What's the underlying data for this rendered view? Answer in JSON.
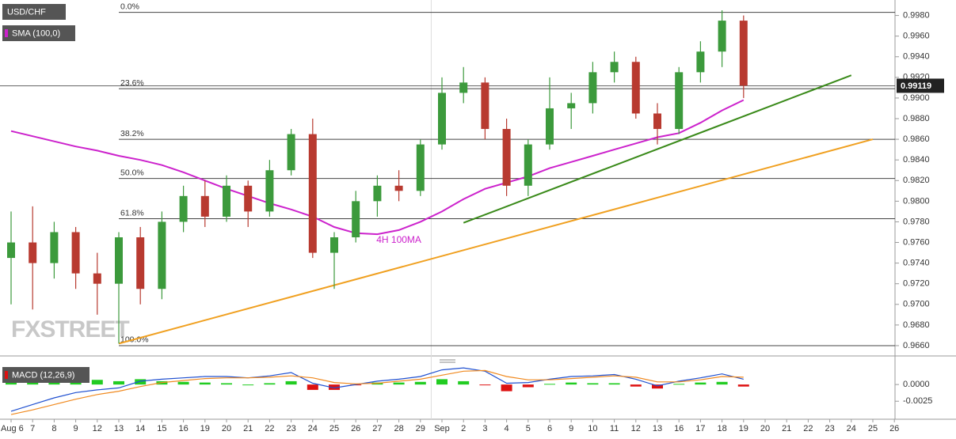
{
  "chart_data": [
    {
      "type": "candlestick",
      "symbol": "USD/CHF",
      "categories": [
        "Aug 6",
        "7",
        "8",
        "9",
        "12",
        "13",
        "14",
        "15",
        "16",
        "19",
        "20",
        "21",
        "22",
        "23",
        "24",
        "25",
        "26",
        "27",
        "28",
        "29",
        "Sep",
        "2",
        "3",
        "4",
        "5",
        "6",
        "9",
        "10",
        "11",
        "12",
        "13",
        "16",
        "17",
        "18",
        "19",
        "20",
        "21",
        "22",
        "23",
        "24",
        "25",
        "26"
      ],
      "open": [
        0.9745,
        0.976,
        0.974,
        0.977,
        0.973,
        0.972,
        0.9765,
        0.9715,
        0.978,
        0.9805,
        0.9785,
        0.9815,
        0.979,
        0.983,
        0.9865,
        0.975,
        0.9765,
        0.98,
        0.9815,
        0.981,
        0.9855,
        0.9905,
        0.9915,
        0.987,
        0.9815,
        0.9855,
        0.989,
        0.9895,
        0.9925,
        0.9935,
        0.9885,
        0.987,
        0.9925,
        0.9945,
        0.9975,
        null,
        null,
        null,
        null,
        null,
        null,
        null
      ],
      "high": [
        0.979,
        0.9795,
        0.978,
        0.9775,
        0.975,
        0.977,
        0.9775,
        0.979,
        0.9815,
        0.982,
        0.9825,
        0.982,
        0.984,
        0.987,
        0.988,
        0.977,
        0.981,
        0.9825,
        0.983,
        0.986,
        0.992,
        0.993,
        0.992,
        0.988,
        0.986,
        0.992,
        0.9905,
        0.9935,
        0.9945,
        0.994,
        0.9895,
        0.993,
        0.9955,
        0.9985,
        0.998,
        null,
        null,
        null,
        null,
        null,
        null,
        null
      ],
      "low": [
        0.97,
        0.9695,
        0.9725,
        0.9715,
        0.969,
        0.9662,
        0.97,
        0.9705,
        0.977,
        0.9775,
        0.978,
        0.9775,
        0.9785,
        0.9825,
        0.9745,
        0.9715,
        0.976,
        0.9785,
        0.98,
        0.9805,
        0.985,
        0.9895,
        0.986,
        0.9805,
        0.9805,
        0.985,
        0.987,
        0.9885,
        0.9915,
        0.988,
        0.9855,
        0.9865,
        0.9915,
        0.993,
        0.99,
        null,
        null,
        null,
        null,
        null,
        null,
        null
      ],
      "close": [
        0.976,
        0.974,
        0.977,
        0.973,
        0.972,
        0.9765,
        0.9715,
        0.978,
        0.9805,
        0.9785,
        0.9815,
        0.979,
        0.983,
        0.9865,
        0.975,
        0.9765,
        0.98,
        0.9815,
        0.981,
        0.9855,
        0.9905,
        0.9915,
        0.987,
        0.9815,
        0.9855,
        0.989,
        0.9895,
        0.9925,
        0.9935,
        0.9885,
        0.987,
        0.9925,
        0.9945,
        0.9975,
        0.9912,
        null,
        null,
        null,
        null,
        null,
        null,
        null
      ],
      "up_color": "#3c9a3c",
      "down_color": "#b83a30",
      "ylim": [
        0.965,
        0.9995
      ],
      "yticks": [
        {
          "value": 0.966,
          "label": "0.9660"
        },
        {
          "value": 0.968,
          "label": "0.9680"
        },
        {
          "value": 0.97,
          "label": "0.9700"
        },
        {
          "value": 0.972,
          "label": "0.9720"
        },
        {
          "value": 0.974,
          "label": "0.9740"
        },
        {
          "value": 0.976,
          "label": "0.9760"
        },
        {
          "value": 0.978,
          "label": "0.9780"
        },
        {
          "value": 0.98,
          "label": "0.9800"
        },
        {
          "value": 0.982,
          "label": "0.9820"
        },
        {
          "value": 0.984,
          "label": "0.9840"
        },
        {
          "value": 0.986,
          "label": "0.9860"
        },
        {
          "value": 0.988,
          "label": "0.9880"
        },
        {
          "value": 0.99,
          "label": "0.9900"
        },
        {
          "value": 0.992,
          "label": "0.9920"
        },
        {
          "value": 0.994,
          "label": "0.9940"
        },
        {
          "value": 0.996,
          "label": "0.9960"
        },
        {
          "value": 0.998,
          "label": "0.9980"
        }
      ],
      "series": [
        {
          "name": "SMA (100,0)",
          "color": "#cc22cc",
          "values": [
            0.9868,
            0.9863,
            0.9858,
            0.9853,
            0.9849,
            0.9844,
            0.984,
            0.9835,
            0.9828,
            0.982,
            0.9812,
            0.9805,
            0.9798,
            0.9792,
            0.9785,
            0.9775,
            0.9769,
            0.9768,
            0.9772,
            0.978,
            0.979,
            0.9802,
            0.9812,
            0.9818,
            0.9824,
            0.9832,
            0.9838,
            0.9844,
            0.985,
            0.9856,
            0.9862,
            0.9866,
            0.9876,
            0.9888,
            0.9898,
            null,
            null,
            null,
            null,
            null,
            null,
            null
          ]
        }
      ],
      "annotation": {
        "text": "4H 100MA",
        "at": 18,
        "value": 0.9762,
        "color": "#cc22cc"
      },
      "fib_from": 5,
      "fib_levels": [
        {
          "label": "0.0%",
          "value": 0.9983
        },
        {
          "label": "23.6%",
          "value": 0.9909
        },
        {
          "label": "38.2%",
          "value": 0.986
        },
        {
          "label": "50.0%",
          "value": 0.9822
        },
        {
          "label": "61.8%",
          "value": 0.9783
        },
        {
          "label": "100.0%",
          "value": 0.966
        }
      ],
      "trendlines": [
        {
          "color": "#3a8a1a",
          "from": 21,
          "to": 39,
          "values": [
            0.9779,
            0.9922
          ]
        },
        {
          "color": "#f0a020",
          "from": 5,
          "to": 40,
          "values": [
            0.9662,
            0.986
          ]
        }
      ],
      "last_price": 0.99119,
      "watermark": "FXSTREET"
    },
    {
      "type": "macd",
      "title": "MACD (12,26,9)",
      "ylim": [
        -0.0052,
        0.0031
      ],
      "yticks": [
        {
          "value": 0,
          "label": "0.0000"
        },
        {
          "value": -0.0025,
          "label": "-0.0025"
        }
      ],
      "positive_color": "#22cc22",
      "negative_color": "#dd1111",
      "histogram": [
        0.0005,
        0.0008,
        0.001,
        0.001,
        0.0007,
        0.0005,
        0.0008,
        0.0005,
        0.0004,
        0.0003,
        0.0002,
        0.0,
        0.0002,
        0.0005,
        -0.0008,
        -0.0008,
        -0.0001,
        0.0003,
        0.0003,
        0.0004,
        0.0008,
        0.0005,
        -0.0001,
        -0.001,
        -0.0004,
        0.0001,
        0.0003,
        0.0002,
        0.0002,
        -0.0003,
        -0.0006,
        0.0001,
        0.0003,
        0.0004,
        -0.0003,
        null,
        null,
        null,
        null,
        null,
        null,
        null
      ],
      "series": [
        {
          "color": "#2050d0",
          "values": [
            -0.004,
            -0.003,
            -0.002,
            -0.0012,
            -0.0008,
            -0.0005,
            0.0005,
            0.0008,
            0.001,
            0.0012,
            0.0012,
            0.001,
            0.0013,
            0.0018,
            0.0002,
            -0.0005,
            0.0,
            0.0005,
            0.0008,
            0.0012,
            0.0022,
            0.0025,
            0.002,
            0.0002,
            0.0003,
            0.0008,
            0.0012,
            0.0013,
            0.0015,
            0.0008,
            -0.0002,
            0.0005,
            0.001,
            0.0016,
            0.0008,
            null,
            null,
            null,
            null,
            null,
            null,
            null
          ]
        },
        {
          "color": "#f08a20",
          "values": [
            -0.0045,
            -0.0038,
            -0.003,
            -0.0022,
            -0.0015,
            -0.001,
            -0.0003,
            0.0003,
            0.0006,
            0.0009,
            0.001,
            0.001,
            0.0011,
            0.0013,
            0.001,
            0.0003,
            0.0001,
            0.0002,
            0.0005,
            0.0008,
            0.0014,
            0.002,
            0.0021,
            0.0012,
            0.0007,
            0.0007,
            0.0009,
            0.0011,
            0.0013,
            0.0011,
            0.0004,
            0.0004,
            0.0007,
            0.0012,
            0.0011,
            null,
            null,
            null,
            null,
            null,
            null,
            null
          ]
        }
      ]
    }
  ]
}
